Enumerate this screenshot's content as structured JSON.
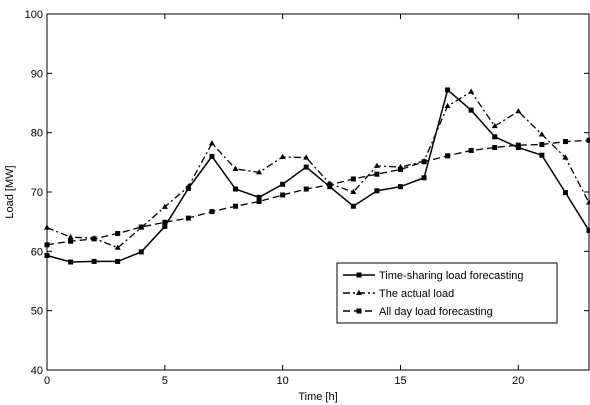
{
  "chart_data": {
    "type": "line",
    "xlabel": "Time [h]",
    "ylabel": "Load [MW]",
    "xlim": [
      0,
      23
    ],
    "ylim": [
      40,
      100
    ],
    "x_ticks": [
      0,
      5,
      10,
      15,
      20
    ],
    "y_ticks": [
      40,
      50,
      60,
      70,
      80,
      90,
      100
    ],
    "grid": false,
    "legend_position": "lower-right",
    "x": [
      0,
      1,
      2,
      3,
      4,
      5,
      6,
      7,
      8,
      9,
      10,
      11,
      12,
      13,
      14,
      15,
      16,
      17,
      18,
      19,
      20,
      21,
      22,
      23
    ],
    "series": [
      {
        "name": "Time-sharing load forecasting",
        "line_style": "solid",
        "marker": "square",
        "values": [
          59.3,
          58.2,
          58.3,
          58.3,
          59.9,
          64.2,
          70.6,
          76.0,
          70.5,
          69.1,
          71.3,
          74.2,
          70.9,
          67.6,
          70.2,
          70.9,
          72.4,
          87.2,
          83.8,
          79.3,
          77.5,
          76.2,
          69.9,
          63.5
        ]
      },
      {
        "name": "The actual load",
        "line_style": "dashdot",
        "marker": "triangle",
        "values": [
          64.0,
          62.4,
          62.2,
          60.6,
          64.0,
          67.5,
          70.9,
          78.2,
          73.9,
          73.3,
          75.9,
          75.8,
          71.4,
          70.0,
          74.4,
          74.2,
          75.2,
          84.5,
          86.9,
          81.1,
          83.6,
          79.7,
          75.8,
          68.2
        ]
      },
      {
        "name": "All day load forecasting",
        "line_style": "dashed",
        "marker": "square",
        "values": [
          61.1,
          61.7,
          62.1,
          63.0,
          64.1,
          64.9,
          65.6,
          66.7,
          67.6,
          68.4,
          69.5,
          70.5,
          71.2,
          72.2,
          73.0,
          73.8,
          75.1,
          76.1,
          77.0,
          77.5,
          77.9,
          78.0,
          78.5,
          78.7
        ]
      }
    ]
  }
}
